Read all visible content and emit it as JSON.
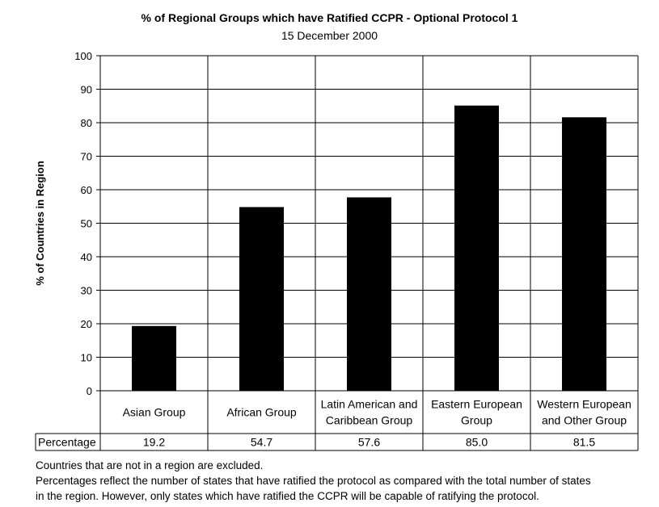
{
  "chart_data": {
    "type": "bar",
    "title": "% of Regional Groups which have Ratified CCPR - Optional Protocol 1",
    "subtitle": "15 December 2000",
    "ylabel": "% of Countries in Region",
    "ylim": [
      0,
      100
    ],
    "yticks": [
      0,
      10,
      20,
      30,
      40,
      50,
      60,
      70,
      80,
      90,
      100
    ],
    "grid": true,
    "categories": [
      [
        "Asian Group"
      ],
      [
        "African Group"
      ],
      [
        "Latin American and",
        "Caribbean Group"
      ],
      [
        "Eastern European",
        "Group"
      ],
      [
        "Western European",
        "and Other Group"
      ]
    ],
    "series": [
      {
        "name": "Percentage",
        "values": [
          19.2,
          54.7,
          57.6,
          85.0,
          81.5
        ]
      }
    ],
    "table_values": [
      "19.2",
      "54.7",
      "57.6",
      "85.0",
      "81.5"
    ],
    "bar_color": "#000000"
  },
  "notes": [
    "Countries that are not in a region are excluded.",
    "Percentages reflect the number of states that have ratified the protocol as compared with the total number of states",
    "in the region. However, only states which have ratified the CCPR will be capable of ratifying the protocol."
  ]
}
